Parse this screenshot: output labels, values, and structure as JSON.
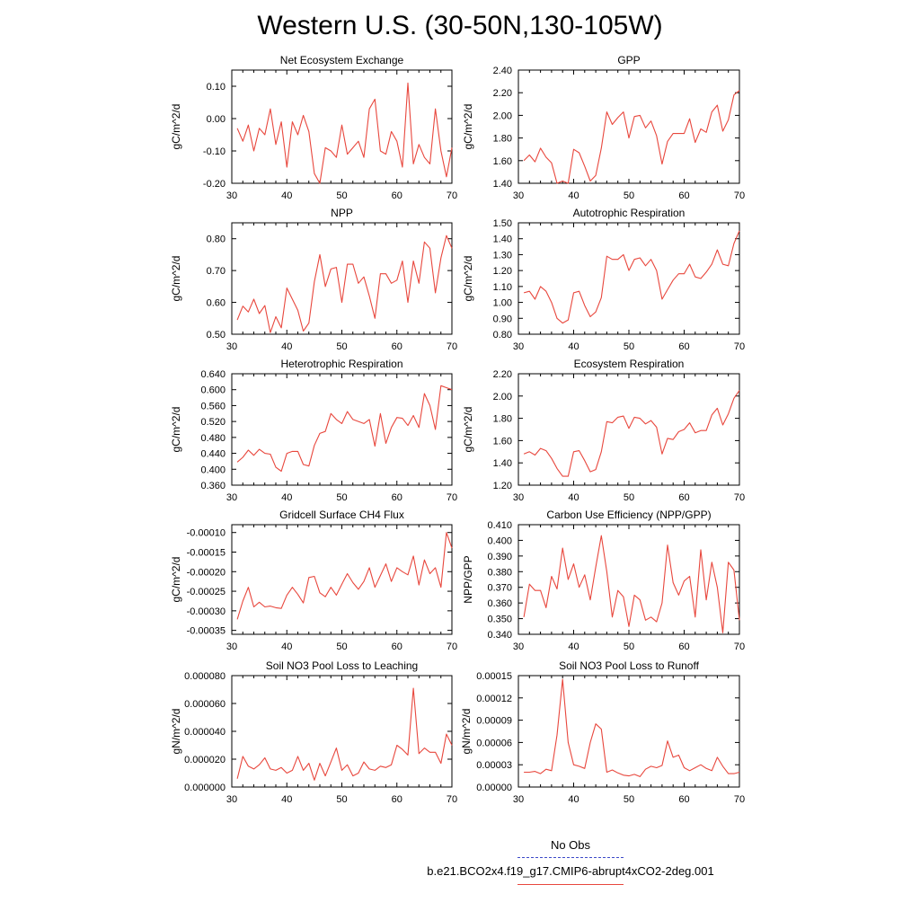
{
  "title": "Western U.S. (30-50N,130-105W)",
  "legend": {
    "obs_label": "No Obs",
    "obs_color": "#3b49c8",
    "case_label": "b.e21.BCO2x4.f19_g17.CMIP6-abrupt4xCO2-2deg.001",
    "case_color": "#e8473d"
  },
  "chart_data": [
    {
      "type": "line",
      "title": "Net Ecosystem Exchange",
      "ylabel": "gC/m^2/d",
      "xlim": [
        30,
        70
      ],
      "ylim": [
        -0.2,
        0.15
      ],
      "xticks": [
        30,
        40,
        50,
        60,
        70
      ],
      "yticks": [
        -0.2,
        -0.1,
        0.0,
        0.1
      ],
      "ytick_labels": [
        "-0.20",
        "-0.10",
        "0.00",
        "0.10"
      ],
      "x": [
        31,
        32,
        33,
        34,
        35,
        36,
        37,
        38,
        39,
        40,
        41,
        42,
        43,
        44,
        45,
        46,
        47,
        48,
        49,
        50,
        51,
        52,
        53,
        54,
        55,
        56,
        57,
        58,
        59,
        60,
        61,
        62,
        63,
        64,
        65,
        66,
        67,
        68,
        69,
        70
      ],
      "values": [
        -0.03,
        -0.07,
        -0.02,
        -0.1,
        -0.03,
        -0.05,
        0.03,
        -0.08,
        -0.01,
        -0.15,
        -0.01,
        -0.05,
        0.01,
        -0.04,
        -0.17,
        -0.2,
        -0.09,
        -0.1,
        -0.12,
        -0.02,
        -0.11,
        -0.09,
        -0.07,
        -0.12,
        0.03,
        0.06,
        -0.1,
        -0.11,
        -0.04,
        -0.07,
        -0.15,
        0.11,
        -0.14,
        -0.08,
        -0.12,
        -0.14,
        0.03,
        -0.1,
        -0.18,
        -0.09
      ]
    },
    {
      "type": "line",
      "title": "GPP",
      "ylabel": "gC/m^2/d",
      "xlim": [
        30,
        70
      ],
      "ylim": [
        1.4,
        2.4
      ],
      "xticks": [
        30,
        40,
        50,
        60,
        70
      ],
      "yticks": [
        1.4,
        1.6,
        1.8,
        2.0,
        2.2,
        2.4
      ],
      "ytick_labels": [
        "1.40",
        "1.60",
        "1.80",
        "2.00",
        "2.20",
        "2.40"
      ],
      "x": [
        31,
        32,
        33,
        34,
        35,
        36,
        37,
        38,
        39,
        40,
        41,
        42,
        43,
        44,
        45,
        46,
        47,
        48,
        49,
        50,
        51,
        52,
        53,
        54,
        55,
        56,
        57,
        58,
        59,
        60,
        61,
        62,
        63,
        64,
        65,
        66,
        67,
        68,
        69,
        70
      ],
      "values": [
        1.6,
        1.65,
        1.59,
        1.71,
        1.63,
        1.58,
        1.4,
        1.42,
        1.4,
        1.7,
        1.67,
        1.55,
        1.42,
        1.47,
        1.71,
        2.03,
        1.92,
        1.98,
        2.03,
        1.8,
        1.99,
        2.0,
        1.89,
        1.95,
        1.82,
        1.57,
        1.77,
        1.84,
        1.84,
        1.84,
        1.97,
        1.76,
        1.88,
        1.85,
        2.03,
        2.09,
        1.86,
        1.96,
        2.18,
        2.22
      ]
    },
    {
      "type": "line",
      "title": "NPP",
      "ylabel": "gC/m^2/d",
      "xlim": [
        30,
        70
      ],
      "ylim": [
        0.5,
        0.85
      ],
      "xticks": [
        30,
        40,
        50,
        60,
        70
      ],
      "yticks": [
        0.5,
        0.6,
        0.7,
        0.8
      ],
      "ytick_labels": [
        "0.50",
        "0.60",
        "0.70",
        "0.80"
      ],
      "x": [
        31,
        32,
        33,
        34,
        35,
        36,
        37,
        38,
        39,
        40,
        41,
        42,
        43,
        44,
        45,
        46,
        47,
        48,
        49,
        50,
        51,
        52,
        53,
        54,
        55,
        56,
        57,
        58,
        59,
        60,
        61,
        62,
        63,
        64,
        65,
        66,
        67,
        68,
        69,
        70
      ],
      "values": [
        0.545,
        0.588,
        0.57,
        0.61,
        0.565,
        0.59,
        0.505,
        0.555,
        0.52,
        0.645,
        0.61,
        0.575,
        0.51,
        0.535,
        0.665,
        0.75,
        0.65,
        0.705,
        0.71,
        0.6,
        0.72,
        0.72,
        0.66,
        0.68,
        0.62,
        0.55,
        0.69,
        0.69,
        0.66,
        0.67,
        0.73,
        0.6,
        0.73,
        0.66,
        0.79,
        0.77,
        0.63,
        0.74,
        0.81,
        0.77
      ]
    },
    {
      "type": "line",
      "title": "Autotrophic Respiration",
      "ylabel": "gC/m^2/d",
      "xlim": [
        30,
        70
      ],
      "ylim": [
        0.8,
        1.5
      ],
      "xticks": [
        30,
        40,
        50,
        60,
        70
      ],
      "yticks": [
        0.8,
        0.9,
        1.0,
        1.1,
        1.2,
        1.3,
        1.4,
        1.5
      ],
      "ytick_labels": [
        "0.80",
        "0.90",
        "1.00",
        "1.10",
        "1.20",
        "1.30",
        "1.40",
        "1.50"
      ],
      "x": [
        31,
        32,
        33,
        34,
        35,
        36,
        37,
        38,
        39,
        40,
        41,
        42,
        43,
        44,
        45,
        46,
        47,
        48,
        49,
        50,
        51,
        52,
        53,
        54,
        55,
        56,
        57,
        58,
        59,
        60,
        61,
        62,
        63,
        64,
        65,
        66,
        67,
        68,
        69,
        70
      ],
      "values": [
        1.06,
        1.07,
        1.02,
        1.1,
        1.07,
        1.0,
        0.9,
        0.87,
        0.89,
        1.06,
        1.07,
        0.98,
        0.91,
        0.94,
        1.03,
        1.29,
        1.27,
        1.27,
        1.3,
        1.2,
        1.27,
        1.28,
        1.23,
        1.27,
        1.2,
        1.02,
        1.08,
        1.14,
        1.18,
        1.18,
        1.24,
        1.16,
        1.15,
        1.19,
        1.24,
        1.33,
        1.24,
        1.23,
        1.37,
        1.45
      ]
    },
    {
      "type": "line",
      "title": "Heterotrophic Respiration",
      "ylabel": "gC/m^2/d",
      "xlim": [
        30,
        70
      ],
      "ylim": [
        0.36,
        0.64
      ],
      "xticks": [
        30,
        40,
        50,
        60,
        70
      ],
      "yticks": [
        0.36,
        0.4,
        0.44,
        0.48,
        0.52,
        0.56,
        0.6,
        0.64
      ],
      "ytick_labels": [
        "0.360",
        "0.400",
        "0.440",
        "0.480",
        "0.520",
        "0.560",
        "0.600",
        "0.640"
      ],
      "x": [
        31,
        32,
        33,
        34,
        35,
        36,
        37,
        38,
        39,
        40,
        41,
        42,
        43,
        44,
        45,
        46,
        47,
        48,
        49,
        50,
        51,
        52,
        53,
        54,
        55,
        56,
        57,
        58,
        59,
        60,
        61,
        62,
        63,
        64,
        65,
        66,
        67,
        68,
        69,
        70
      ],
      "values": [
        0.418,
        0.43,
        0.448,
        0.435,
        0.45,
        0.44,
        0.438,
        0.405,
        0.395,
        0.44,
        0.445,
        0.445,
        0.412,
        0.408,
        0.46,
        0.49,
        0.495,
        0.54,
        0.525,
        0.515,
        0.545,
        0.525,
        0.52,
        0.515,
        0.525,
        0.458,
        0.54,
        0.465,
        0.505,
        0.53,
        0.528,
        0.51,
        0.535,
        0.505,
        0.59,
        0.56,
        0.5,
        0.61,
        0.605,
        0.6
      ]
    },
    {
      "type": "line",
      "title": "Ecosystem Respiration",
      "ylabel": "gC/m^2/d",
      "xlim": [
        30,
        70
      ],
      "ylim": [
        1.2,
        2.2
      ],
      "xticks": [
        30,
        40,
        50,
        60,
        70
      ],
      "yticks": [
        1.2,
        1.4,
        1.6,
        1.8,
        2.0,
        2.2
      ],
      "ytick_labels": [
        "1.20",
        "1.40",
        "1.60",
        "1.80",
        "2.00",
        "2.20"
      ],
      "x": [
        31,
        32,
        33,
        34,
        35,
        36,
        37,
        38,
        39,
        40,
        41,
        42,
        43,
        44,
        45,
        46,
        47,
        48,
        49,
        50,
        51,
        52,
        53,
        54,
        55,
        56,
        57,
        58,
        59,
        60,
        61,
        62,
        63,
        64,
        65,
        66,
        67,
        68,
        69,
        70
      ],
      "values": [
        1.48,
        1.5,
        1.47,
        1.53,
        1.51,
        1.44,
        1.35,
        1.28,
        1.28,
        1.5,
        1.51,
        1.42,
        1.32,
        1.34,
        1.5,
        1.77,
        1.76,
        1.81,
        1.82,
        1.71,
        1.81,
        1.8,
        1.75,
        1.78,
        1.72,
        1.48,
        1.62,
        1.61,
        1.68,
        1.7,
        1.76,
        1.67,
        1.69,
        1.69,
        1.83,
        1.89,
        1.74,
        1.84,
        1.98,
        2.05
      ]
    },
    {
      "type": "line",
      "title": "Gridcell Surface CH4 Flux",
      "ylabel": "gC/m^2/d",
      "xlim": [
        30,
        70
      ],
      "ylim": [
        -0.00036,
        -8e-05
      ],
      "xticks": [
        30,
        40,
        50,
        60,
        70
      ],
      "yticks": [
        -0.00035,
        -0.0003,
        -0.00025,
        -0.0002,
        -0.00015,
        -0.0001
      ],
      "ytick_labels": [
        "-0.00035",
        "-0.00030",
        "-0.00025",
        "-0.00020",
        "-0.00015",
        "-0.00010"
      ],
      "x": [
        31,
        32,
        33,
        34,
        35,
        36,
        37,
        38,
        39,
        40,
        41,
        42,
        43,
        44,
        45,
        46,
        47,
        48,
        49,
        50,
        51,
        52,
        53,
        54,
        55,
        56,
        57,
        58,
        59,
        60,
        61,
        62,
        63,
        64,
        65,
        66,
        67,
        68,
        69,
        70
      ],
      "values": [
        -0.000322,
        -0.000275,
        -0.00024,
        -0.00029,
        -0.000278,
        -0.00029,
        -0.000288,
        -0.000292,
        -0.000294,
        -0.00026,
        -0.00024,
        -0.000258,
        -0.00028,
        -0.000215,
        -0.000212,
        -0.000254,
        -0.000264,
        -0.00024,
        -0.00026,
        -0.000232,
        -0.000205,
        -0.000228,
        -0.000245,
        -0.000225,
        -0.00019,
        -0.00024,
        -0.00021,
        -0.00018,
        -0.000225,
        -0.00019,
        -0.0002,
        -0.000208,
        -0.00016,
        -0.000234,
        -0.00017,
        -0.000205,
        -0.00019,
        -0.00024,
        -0.0001,
        -0.00014
      ]
    },
    {
      "type": "line",
      "title": "Carbon Use Efficiency (NPP/GPP)",
      "ylabel": "NPP/GPP",
      "xlim": [
        30,
        70
      ],
      "ylim": [
        0.34,
        0.41
      ],
      "xticks": [
        30,
        40,
        50,
        60,
        70
      ],
      "yticks": [
        0.34,
        0.35,
        0.36,
        0.37,
        0.38,
        0.39,
        0.4,
        0.41
      ],
      "ytick_labels": [
        "0.340",
        "0.350",
        "0.360",
        "0.370",
        "0.380",
        "0.390",
        "0.400",
        "0.410"
      ],
      "x": [
        31,
        32,
        33,
        34,
        35,
        36,
        37,
        38,
        39,
        40,
        41,
        42,
        43,
        44,
        45,
        46,
        47,
        48,
        49,
        50,
        51,
        52,
        53,
        54,
        55,
        56,
        57,
        58,
        59,
        60,
        61,
        62,
        63,
        64,
        65,
        66,
        67,
        68,
        69,
        70
      ],
      "values": [
        0.351,
        0.372,
        0.368,
        0.368,
        0.357,
        0.377,
        0.369,
        0.395,
        0.375,
        0.385,
        0.37,
        0.378,
        0.362,
        0.383,
        0.403,
        0.38,
        0.351,
        0.368,
        0.364,
        0.345,
        0.365,
        0.362,
        0.349,
        0.351,
        0.348,
        0.36,
        0.397,
        0.373,
        0.365,
        0.374,
        0.377,
        0.351,
        0.394,
        0.362,
        0.386,
        0.37,
        0.341,
        0.386,
        0.381,
        0.349
      ]
    },
    {
      "type": "line",
      "title": "Soil NO3 Pool Loss to Leaching",
      "ylabel": "gN/m^2/d",
      "xlim": [
        30,
        70
      ],
      "ylim": [
        0,
        8e-05
      ],
      "xticks": [
        30,
        40,
        50,
        60,
        70
      ],
      "yticks": [
        0,
        2e-05,
        4e-05,
        6e-05,
        8e-05
      ],
      "ytick_labels": [
        "0.000000",
        "0.000020",
        "0.000040",
        "0.000060",
        "0.000080"
      ],
      "x": [
        31,
        32,
        33,
        34,
        35,
        36,
        37,
        38,
        39,
        40,
        41,
        42,
        43,
        44,
        45,
        46,
        47,
        48,
        49,
        50,
        51,
        52,
        53,
        54,
        55,
        56,
        57,
        58,
        59,
        60,
        61,
        62,
        63,
        64,
        65,
        66,
        67,
        68,
        69,
        70
      ],
      "values": [
        6e-06,
        2.2e-05,
        1.5e-05,
        1.3e-05,
        1.6e-05,
        2.1e-05,
        1.3e-05,
        1.2e-05,
        1.4e-05,
        1e-05,
        1.2e-05,
        2.2e-05,
        1.2e-05,
        1.7e-05,
        5e-06,
        1.7e-05,
        8e-06,
        1.8e-05,
        2.8e-05,
        1.2e-05,
        1.6e-05,
        8e-06,
        1e-05,
        1.8e-05,
        1.3e-05,
        1.2e-05,
        1.5e-05,
        1.4e-05,
        1.6e-05,
        3e-05,
        2.7e-05,
        2.3e-05,
        7.1e-05,
        2.4e-05,
        2.8e-05,
        2.5e-05,
        2.5e-05,
        1.7e-05,
        3.8e-05,
        3e-05
      ]
    },
    {
      "type": "line",
      "title": "Soil NO3 Pool Loss to Runoff",
      "ylabel": "gN/m^2/d",
      "xlim": [
        30,
        70
      ],
      "ylim": [
        0,
        0.00015
      ],
      "xticks": [
        30,
        40,
        50,
        60,
        70
      ],
      "yticks": [
        0,
        3e-05,
        6e-05,
        9e-05,
        0.00012,
        0.00015
      ],
      "ytick_labels": [
        "0.00000",
        "0.00003",
        "0.00006",
        "0.00009",
        "0.00012",
        "0.00015"
      ],
      "x": [
        31,
        32,
        33,
        34,
        35,
        36,
        37,
        38,
        39,
        40,
        41,
        42,
        43,
        44,
        45,
        46,
        47,
        48,
        49,
        50,
        51,
        52,
        53,
        54,
        55,
        56,
        57,
        58,
        59,
        60,
        61,
        62,
        63,
        64,
        65,
        66,
        67,
        68,
        69,
        70
      ],
      "values": [
        2e-05,
        2e-05,
        2.1e-05,
        1.8e-05,
        2.4e-05,
        2.2e-05,
        7e-05,
        0.000145,
        6e-05,
        3e-05,
        2.8e-05,
        2.5e-05,
        6e-05,
        8.5e-05,
        7.8e-05,
        2e-05,
        2.3e-05,
        1.9e-05,
        1.6e-05,
        1.5e-05,
        1.7e-05,
        1.4e-05,
        2.4e-05,
        2.8e-05,
        2.6e-05,
        2.9e-05,
        6.2e-05,
        4e-05,
        4.3e-05,
        2.6e-05,
        2.2e-05,
        2.6e-05,
        3e-05,
        2.5e-05,
        2.2e-05,
        4e-05,
        2.8e-05,
        1.8e-05,
        1.8e-05,
        2e-05
      ]
    }
  ]
}
